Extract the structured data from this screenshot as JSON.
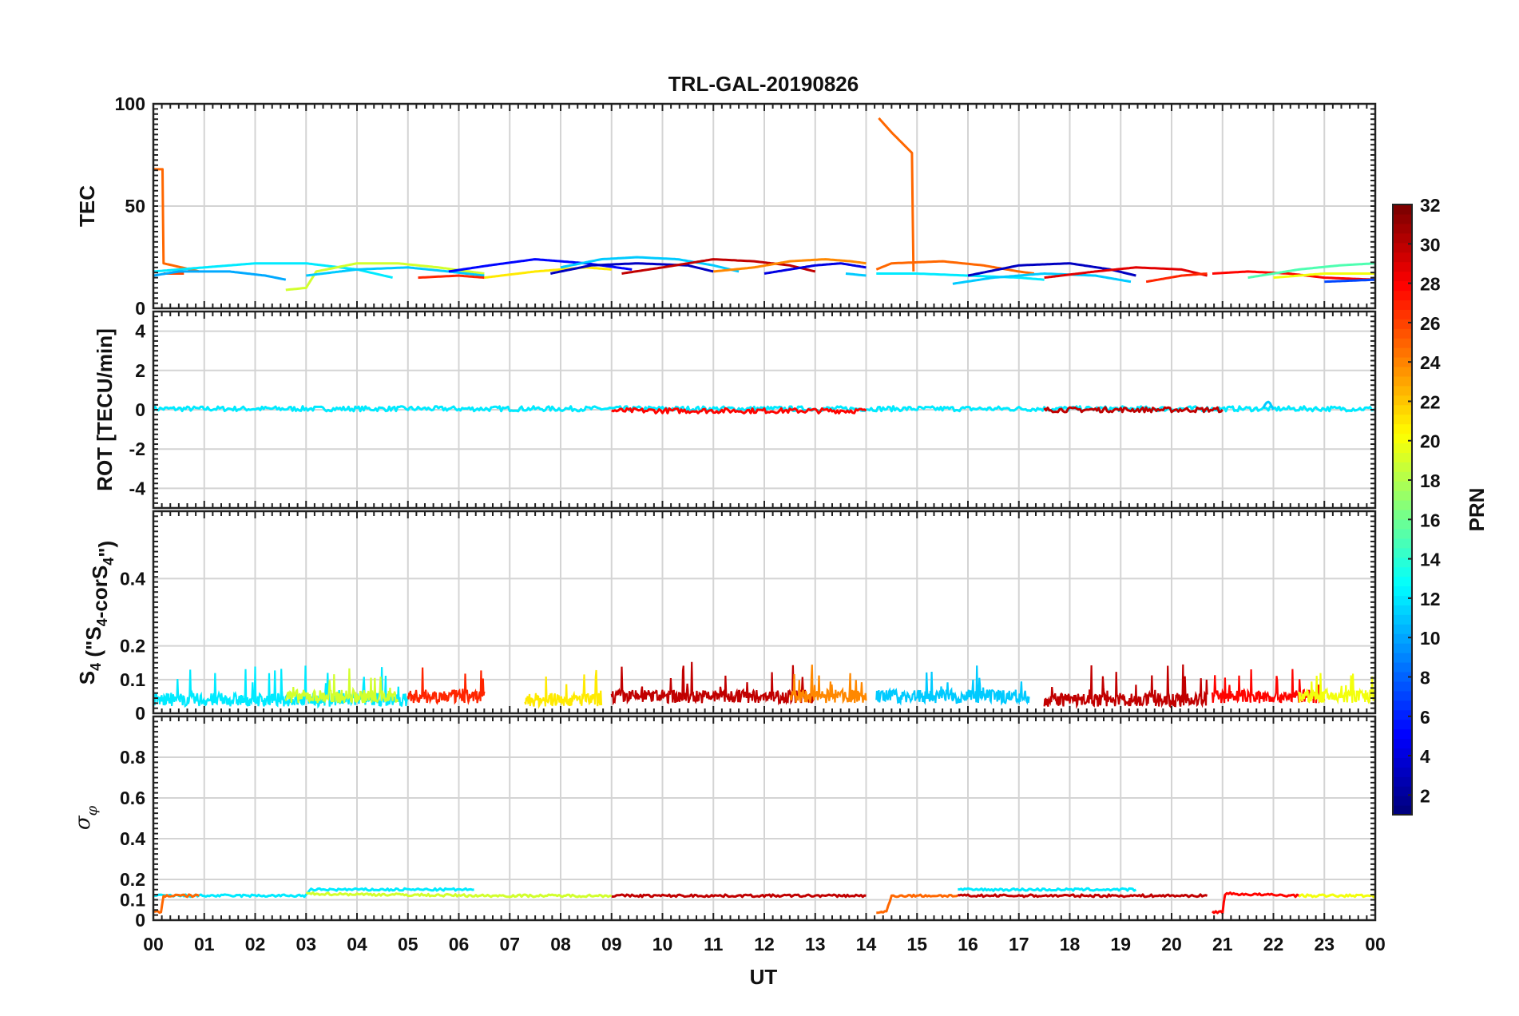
{
  "chart_data": {
    "type": "line",
    "title": "TRL-GAL-20190826",
    "xlabel": "UT",
    "x_ticks": [
      "00",
      "01",
      "02",
      "03",
      "04",
      "05",
      "06",
      "07",
      "08",
      "09",
      "10",
      "11",
      "12",
      "13",
      "14",
      "15",
      "16",
      "17",
      "18",
      "19",
      "20",
      "21",
      "22",
      "23",
      "00"
    ],
    "xlim": [
      0,
      24
    ],
    "grid": true,
    "colorbar": {
      "label": "PRN",
      "range": [
        1,
        32
      ],
      "ticks": [
        "2",
        "4",
        "6",
        "8",
        "10",
        "12",
        "14",
        "16",
        "18",
        "20",
        "22",
        "24",
        "26",
        "28",
        "30",
        "32"
      ],
      "colormap": "jet"
    },
    "panels": [
      {
        "ylabel": "TEC",
        "ylim": [
          0,
          100
        ],
        "yticks": [
          "0",
          "50",
          "100"
        ],
        "series": [
          {
            "prn": 25,
            "points": [
              [
                0.0,
                68
              ],
              [
                0.18,
                68
              ],
              [
                0.2,
                22
              ],
              [
                0.9,
                18
              ]
            ]
          },
          {
            "prn": 26,
            "points": [
              [
                0.2,
                17
              ],
              [
                0.6,
                17
              ]
            ]
          },
          {
            "prn": 12,
            "points": [
              [
                0.0,
                18
              ],
              [
                1.0,
                20
              ],
              [
                2.0,
                22
              ],
              [
                3.0,
                22
              ],
              [
                4.0,
                19
              ],
              [
                4.7,
                15
              ]
            ]
          },
          {
            "prn": 10,
            "points": [
              [
                0.0,
                16
              ],
              [
                0.5,
                18
              ],
              [
                1.5,
                18
              ],
              [
                2.2,
                16
              ],
              [
                2.6,
                14
              ]
            ]
          },
          {
            "prn": 19,
            "points": [
              [
                2.6,
                9
              ],
              [
                3.0,
                10
              ],
              [
                3.2,
                18
              ],
              [
                4.0,
                22
              ],
              [
                4.8,
                22
              ],
              [
                5.6,
                20
              ],
              [
                6.5,
                17
              ]
            ]
          },
          {
            "prn": 11,
            "points": [
              [
                3.0,
                16
              ],
              [
                4.0,
                19
              ],
              [
                5.0,
                20
              ],
              [
                5.8,
                18
              ],
              [
                6.5,
                16
              ]
            ]
          },
          {
            "prn": 27,
            "points": [
              [
                5.2,
                15
              ],
              [
                6.0,
                16
              ],
              [
                6.5,
                15
              ]
            ]
          },
          {
            "prn": 5,
            "points": [
              [
                5.8,
                18
              ],
              [
                6.6,
                21
              ],
              [
                7.5,
                24
              ],
              [
                8.5,
                22
              ],
              [
                9.4,
                19
              ]
            ]
          },
          {
            "prn": 21,
            "points": [
              [
                6.5,
                15
              ],
              [
                7.5,
                18
              ],
              [
                8.5,
                20
              ],
              [
                9.0,
                19
              ]
            ]
          },
          {
            "prn": 3,
            "points": [
              [
                7.8,
                17
              ],
              [
                8.6,
                21
              ],
              [
                9.5,
                22
              ],
              [
                10.5,
                21
              ],
              [
                11.0,
                18
              ]
            ]
          },
          {
            "prn": 11,
            "points": [
              [
                8.0,
                20
              ],
              [
                8.8,
                24
              ],
              [
                9.5,
                25
              ],
              [
                10.3,
                24
              ],
              [
                11.0,
                21
              ],
              [
                11.5,
                18
              ]
            ]
          },
          {
            "prn": 30,
            "points": [
              [
                9.2,
                17
              ],
              [
                10.0,
                20
              ],
              [
                11.0,
                24
              ],
              [
                11.8,
                23
              ],
              [
                12.5,
                21
              ],
              [
                13.0,
                18
              ]
            ]
          },
          {
            "prn": 24,
            "points": [
              [
                11.0,
                18
              ],
              [
                11.8,
                20
              ],
              [
                12.5,
                23
              ],
              [
                13.2,
                24
              ],
              [
                13.7,
                23
              ],
              [
                14.0,
                22
              ]
            ]
          },
          {
            "prn": 4,
            "points": [
              [
                12.0,
                17
              ],
              [
                13.0,
                21
              ],
              [
                13.5,
                22
              ],
              [
                14.0,
                20
              ]
            ]
          },
          {
            "prn": 11,
            "points": [
              [
                13.6,
                17
              ],
              [
                14.0,
                16
              ]
            ]
          },
          {
            "prn": 25,
            "points": [
              [
                14.25,
                93
              ],
              [
                14.5,
                86
              ],
              [
                14.9,
                76
              ],
              [
                14.93,
                18
              ],
              [
                14.93,
                18
              ]
            ]
          },
          {
            "prn": 25,
            "points": [
              [
                14.2,
                19
              ],
              [
                14.5,
                22
              ],
              [
                15.5,
                23
              ],
              [
                16.3,
                21
              ],
              [
                17.0,
                18
              ],
              [
                17.3,
                17
              ]
            ]
          },
          {
            "prn": 12,
            "points": [
              [
                14.2,
                17
              ],
              [
                15.0,
                17
              ],
              [
                16.0,
                16
              ],
              [
                17.0,
                15
              ],
              [
                17.5,
                14
              ]
            ]
          },
          {
            "prn": 3,
            "points": [
              [
                16.0,
                16
              ],
              [
                17.0,
                21
              ],
              [
                18.0,
                22
              ],
              [
                18.8,
                19
              ],
              [
                19.3,
                16
              ]
            ]
          },
          {
            "prn": 11,
            "points": [
              [
                15.7,
                12
              ],
              [
                16.5,
                15
              ],
              [
                17.5,
                17
              ],
              [
                18.5,
                16
              ],
              [
                19.2,
                13
              ]
            ]
          },
          {
            "prn": 29,
            "points": [
              [
                17.5,
                15
              ],
              [
                18.5,
                18
              ],
              [
                19.3,
                20
              ],
              [
                20.2,
                19
              ],
              [
                20.7,
                16
              ]
            ]
          },
          {
            "prn": 27,
            "points": [
              [
                19.5,
                13
              ],
              [
                20.2,
                16
              ],
              [
                20.7,
                17
              ]
            ]
          },
          {
            "prn": 28,
            "points": [
              [
                20.8,
                17
              ],
              [
                21.5,
                18
              ],
              [
                22.3,
                17
              ],
              [
                23.0,
                15
              ],
              [
                24.0,
                14
              ]
            ]
          },
          {
            "prn": 15,
            "points": [
              [
                21.5,
                15
              ],
              [
                22.5,
                19
              ],
              [
                23.3,
                21
              ],
              [
                24.0,
                22
              ]
            ]
          },
          {
            "prn": 20,
            "points": [
              [
                22.0,
                15
              ],
              [
                23.0,
                17
              ],
              [
                24.0,
                17
              ]
            ]
          },
          {
            "prn": 7,
            "points": [
              [
                23.0,
                13
              ],
              [
                24.0,
                14
              ]
            ]
          }
        ]
      },
      {
        "ylabel": "ROT [TECU/min]",
        "ylim": [
          -5,
          5
        ],
        "yticks": [
          "-4",
          "-2",
          "0",
          "2",
          "4"
        ],
        "series": [
          {
            "prn": 12,
            "points": [
              [
                0.0,
                0.05
              ],
              [
                24.0,
                0.05
              ]
            ]
          },
          {
            "prn": 28,
            "points": [
              [
                9.0,
                -0.05
              ],
              [
                14.0,
                -0.05
              ]
            ]
          },
          {
            "prn": 30,
            "points": [
              [
                17.5,
                0.0
              ],
              [
                21.0,
                0.0
              ]
            ]
          },
          {
            "prn": 11,
            "points": [
              [
                21.8,
                0.0
              ],
              [
                21.9,
                0.5
              ],
              [
                22.0,
                0.0
              ]
            ]
          }
        ]
      },
      {
        "ylabel": "S4 (\"S4-corS4\")",
        "ylim": [
          0,
          0.6
        ],
        "yticks": [
          "0",
          "0.1",
          "0.2",
          "0.4"
        ],
        "series": [
          {
            "prn": 12,
            "level": 0.04,
            "range": [
              0.0,
              5.0
            ]
          },
          {
            "prn": 19,
            "level": 0.05,
            "range": [
              2.6,
              4.8
            ]
          },
          {
            "prn": 27,
            "level": 0.05,
            "range": [
              5.0,
              6.5
            ]
          },
          {
            "prn": 21,
            "level": 0.04,
            "range": [
              7.3,
              8.8
            ]
          },
          {
            "prn": 30,
            "level": 0.05,
            "range": [
              9.0,
              13.0
            ]
          },
          {
            "prn": 24,
            "level": 0.05,
            "range": [
              12.5,
              14.0
            ]
          },
          {
            "prn": 11,
            "level": 0.05,
            "range": [
              14.2,
              17.2
            ]
          },
          {
            "prn": 30,
            "level": 0.04,
            "range": [
              17.5,
              20.7
            ]
          },
          {
            "prn": 28,
            "level": 0.05,
            "range": [
              20.8,
              23.0
            ]
          },
          {
            "prn": 20,
            "level": 0.05,
            "range": [
              22.5,
              24.0
            ]
          }
        ]
      },
      {
        "ylabel": "σφ",
        "ylim": [
          0,
          1
        ],
        "yticks": [
          "0",
          "0.1",
          "0.2",
          "0.4",
          "0.6",
          "0.8"
        ],
        "series": [
          {
            "prn": 12,
            "points": [
              [
                0.0,
                0.12
              ],
              [
                3.0,
                0.12
              ],
              [
                3.1,
                0.15
              ],
              [
                6.3,
                0.15
              ]
            ]
          },
          {
            "prn": 19,
            "points": [
              [
                3.0,
                0.13
              ],
              [
                6.5,
                0.12
              ],
              [
                9.0,
                0.12
              ]
            ]
          },
          {
            "prn": 30,
            "points": [
              [
                9.0,
                0.12
              ],
              [
                14.0,
                0.12
              ]
            ]
          },
          {
            "prn": 25,
            "points": [
              [
                0.0,
                0.04
              ],
              [
                0.15,
                0.04
              ],
              [
                0.2,
                0.12
              ],
              [
                0.9,
                0.12
              ]
            ]
          },
          {
            "prn": 25,
            "points": [
              [
                14.2,
                0.04
              ],
              [
                14.4,
                0.04
              ],
              [
                14.5,
                0.12
              ],
              [
                15.8,
                0.12
              ]
            ]
          },
          {
            "prn": 12,
            "points": [
              [
                15.8,
                0.15
              ],
              [
                19.3,
                0.15
              ]
            ]
          },
          {
            "prn": 30,
            "points": [
              [
                15.8,
                0.12
              ],
              [
                20.7,
                0.12
              ]
            ]
          },
          {
            "prn": 28,
            "points": [
              [
                20.8,
                0.04
              ],
              [
                21.0,
                0.04
              ],
              [
                21.05,
                0.13
              ],
              [
                22.5,
                0.12
              ]
            ]
          },
          {
            "prn": 20,
            "points": [
              [
                22.5,
                0.12
              ],
              [
                24.0,
                0.12
              ]
            ]
          }
        ]
      }
    ]
  }
}
